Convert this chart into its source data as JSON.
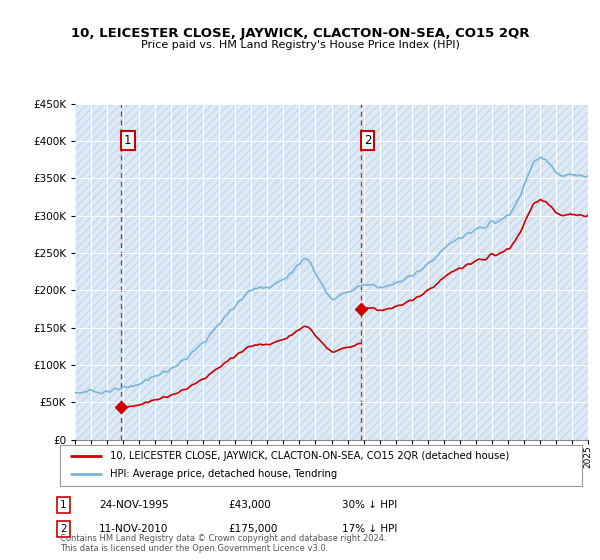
{
  "title": "10, LEICESTER CLOSE, JAYWICK, CLACTON-ON-SEA, CO15 2QR",
  "subtitle": "Price paid vs. HM Land Registry's House Price Index (HPI)",
  "legend_line1": "10, LEICESTER CLOSE, JAYWICK, CLACTON-ON-SEA, CO15 2QR (detached house)",
  "legend_line2": "HPI: Average price, detached house, Tendring",
  "sale1_date": "24-NOV-1995",
  "sale1_price": "£43,000",
  "sale1_hpi": "30% ↓ HPI",
  "sale2_date": "11-NOV-2010",
  "sale2_price": "£175,000",
  "sale2_hpi": "17% ↓ HPI",
  "footnote": "Contains HM Land Registry data © Crown copyright and database right 2024.\nThis data is licensed under the Open Government Licence v3.0.",
  "hpi_color": "#7ab4d8",
  "price_color": "#cc0000",
  "vline_color": "#cc0000",
  "bg_color": "#ddeaf5",
  "hatch_color": "#c5d8ec",
  "ylim": [
    0,
    450000
  ],
  "yticks": [
    0,
    50000,
    100000,
    150000,
    200000,
    250000,
    300000,
    350000,
    400000,
    450000
  ],
  "x_start_year": 1993,
  "x_end_year": 2025,
  "sale1_year": 1995.9,
  "sale2_year": 2010.85,
  "sale1_price_val": 43000,
  "sale2_price_val": 175000,
  "hpi_knots_x": [
    1993,
    1994,
    1995,
    1996,
    1997,
    1998,
    1999,
    2000,
    2001,
    2002,
    2003,
    2004,
    2005,
    2006,
    2007,
    2007.5,
    2008,
    2008.5,
    2009,
    2009.5,
    2010,
    2010.5,
    2011,
    2011.5,
    2012,
    2013,
    2014,
    2015,
    2016,
    2017,
    2018,
    2019,
    2020,
    2020.5,
    2021,
    2021.5,
    2022,
    2022.5,
    2023,
    2023.5,
    2024,
    2024.5,
    2025
  ],
  "hpi_knots_y": [
    63000,
    64000,
    65000,
    68000,
    75000,
    85000,
    95000,
    110000,
    130000,
    155000,
    180000,
    200000,
    205000,
    215000,
    235000,
    242000,
    225000,
    205000,
    188000,
    192000,
    198000,
    203000,
    207000,
    208000,
    205000,
    210000,
    220000,
    235000,
    255000,
    270000,
    280000,
    290000,
    300000,
    315000,
    340000,
    365000,
    378000,
    372000,
    358000,
    352000,
    355000,
    352000,
    355000
  ]
}
